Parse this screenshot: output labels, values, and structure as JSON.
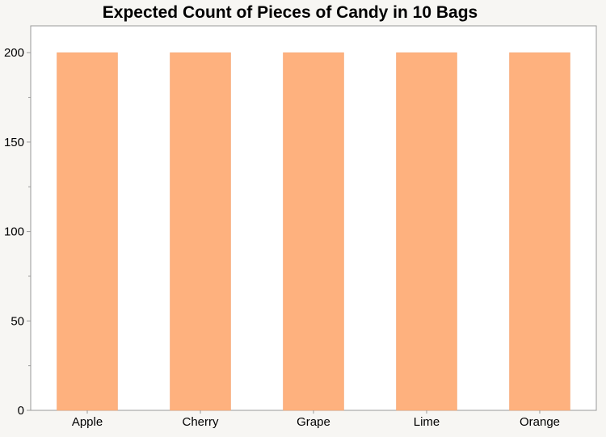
{
  "chart_data": {
    "type": "bar",
    "title": "Expected Count of Pieces of Candy in 10 Bags",
    "xlabel": "",
    "ylabel": "",
    "categories": [
      "Apple",
      "Cherry",
      "Grape",
      "Lime",
      "Orange"
    ],
    "values": [
      200,
      200,
      200,
      200,
      200
    ],
    "ylim": [
      0,
      215
    ],
    "yticks": [
      0,
      50,
      100,
      150,
      200
    ],
    "grid": false,
    "legend": "none",
    "colors": {
      "bar": "#feb17e",
      "bar_stroke": "#f3a26e",
      "plot_background": "#ffffff",
      "page_background": "#f7f6f3",
      "axis": "#9a9a9a"
    }
  }
}
